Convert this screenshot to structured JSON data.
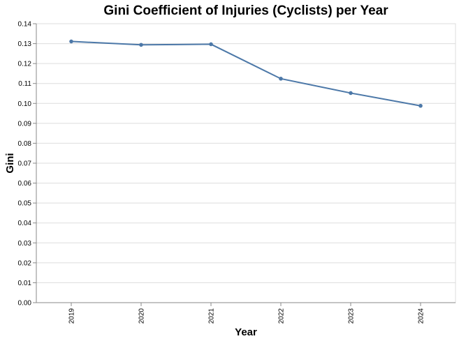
{
  "chart_data": {
    "type": "line",
    "title": "Gini Coefficient of Injuries (Cyclists) per Year",
    "xlabel": "Year",
    "ylabel": "Gini",
    "categories": [
      "2019",
      "2020",
      "2021",
      "2022",
      "2023",
      "2024"
    ],
    "series": [
      {
        "values": [
          0.1311,
          0.1294,
          0.1297,
          0.1124,
          0.1052,
          0.0988
        ]
      }
    ],
    "ylim": [
      0,
      0.14
    ],
    "yticks": [
      "0.00",
      "0.01",
      "0.02",
      "0.03",
      "0.04",
      "0.05",
      "0.06",
      "0.07",
      "0.08",
      "0.09",
      "0.10",
      "0.11",
      "0.12",
      "0.13",
      "0.14"
    ],
    "grid": true,
    "legend": "none",
    "colors": {
      "line": "#4c78a8",
      "point": "#4c78a8"
    }
  }
}
